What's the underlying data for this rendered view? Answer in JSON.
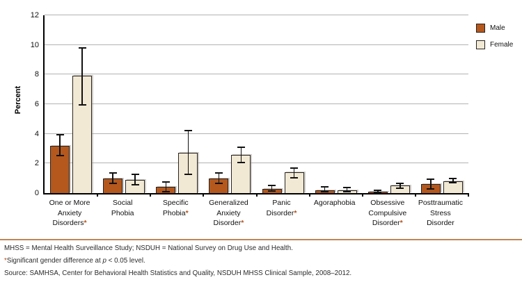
{
  "chart_data": {
    "type": "bar",
    "title": "",
    "ylabel": "Percent",
    "xlabel": "",
    "ylim": [
      0,
      12
    ],
    "yticks": [
      0,
      2,
      4,
      6,
      8,
      10,
      12
    ],
    "grid": true,
    "legend_position": "top-right",
    "categories": [
      {
        "lines": [
          "One or More",
          "Anxiety Disorders*"
        ],
        "significant": true
      },
      {
        "lines": [
          "Social",
          "Phobia"
        ],
        "significant": false
      },
      {
        "lines": [
          "Specific",
          "Phobia*"
        ],
        "significant": true
      },
      {
        "lines": [
          "Generalized",
          "Anxiety",
          "Disorder*"
        ],
        "significant": true
      },
      {
        "lines": [
          "Panic",
          "Disorder*"
        ],
        "significant": true
      },
      {
        "lines": [
          "Agoraphobia"
        ],
        "significant": false
      },
      {
        "lines": [
          "Obsessive",
          "Compulsive",
          "Disorder*"
        ],
        "significant": true
      },
      {
        "lines": [
          "Posttraumatic",
          "Stress",
          "Disorder"
        ],
        "significant": false
      }
    ],
    "series": [
      {
        "name": "Male",
        "color": "#b4581e",
        "values": [
          3.2,
          1.0,
          0.4,
          1.0,
          0.3,
          0.2,
          0.1,
          0.6
        ],
        "err_low": [
          2.5,
          0.6,
          0.05,
          0.6,
          0.1,
          0.05,
          0.0,
          0.25
        ],
        "err_high": [
          4.0,
          1.4,
          0.8,
          1.4,
          0.55,
          0.45,
          0.25,
          1.0
        ]
      },
      {
        "name": "Female",
        "color": "#f2e9d5",
        "values": [
          7.9,
          0.9,
          2.7,
          2.6,
          1.4,
          0.2,
          0.5,
          0.8
        ],
        "err_low": [
          5.9,
          0.5,
          1.2,
          2.0,
          1.0,
          0.05,
          0.3,
          0.65
        ],
        "err_high": [
          9.85,
          1.3,
          4.25,
          3.15,
          1.75,
          0.4,
          0.7,
          1.05
        ]
      }
    ],
    "colors": {
      "male_bar": "#b4581e",
      "female_bar": "#f2e9d5",
      "bar_border": "#27221f",
      "gridline": "#b2b2b2",
      "axis": "#000000",
      "asterisk": "#b5521b",
      "footer_rule": "#bf8656"
    }
  },
  "footnotes": {
    "line1": "MHSS = Mental Health Surveillance Study; NSDUH = National Survey on Drug Use and Health.",
    "significance": {
      "marker": "*",
      "pre": "Significant gender difference at ",
      "p_symbol": "p",
      "post": " < 0.05 level."
    },
    "source": "Source: SAMHSA, Center for Behavioral Health Statistics and Quality, NSDUH MHSS Clinical Sample, 2008–2012."
  }
}
